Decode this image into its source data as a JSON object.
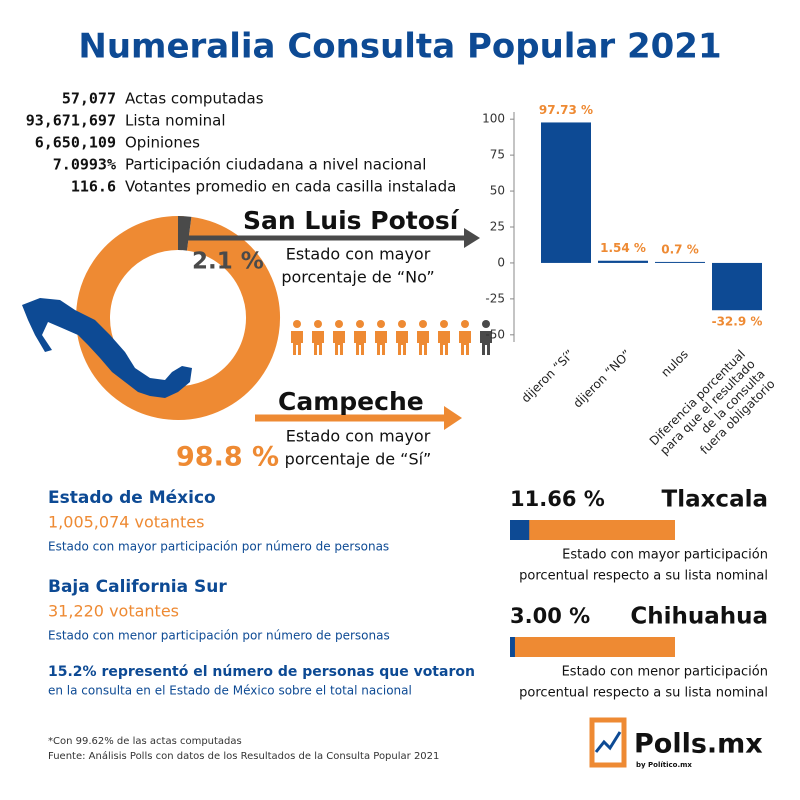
{
  "title": "Numeralia Consulta Popular 2021",
  "stats": [
    {
      "value": "57,077",
      "label": "Actas computadas"
    },
    {
      "value": "93,671,697",
      "label": "Lista nominal"
    },
    {
      "value": "6,650,109",
      "label": "Opiniones"
    },
    {
      "value": "7.0993%",
      "label": "Participación ciudadana a nivel nacional"
    },
    {
      "value": "116.6",
      "label": "Votantes promedio en cada casilla instalada"
    }
  ],
  "donut": {
    "values": [
      2.1,
      98.8
    ],
    "value_labels": [
      "2.1 %",
      "98.8 %"
    ],
    "states": [
      "San Luis Potosí",
      "Campeche"
    ],
    "captions": [
      [
        "Estado con mayor",
        "porcentaje de “No”"
      ],
      [
        "Estado con mayor",
        "porcentaje de “Sí”"
      ]
    ]
  },
  "chart_data": {
    "type": "bar",
    "categories": [
      [
        "dijeron “Sí”"
      ],
      [
        "dijeron “NO”"
      ],
      [
        "nulos"
      ],
      [
        "Diferencia porcentual",
        "para que el resultado",
        "de la consulta",
        "fuera obligatorio"
      ]
    ],
    "values": [
      97.73,
      1.54,
      0.7,
      -32.9
    ],
    "value_labels": [
      "97.73 %",
      "1.54 %",
      "0.7 %",
      "-32.9 %"
    ],
    "color": "#0d4a94",
    "label_color": "#ee8a33",
    "ylim": [
      -55,
      105
    ],
    "yticks": [
      -50,
      -25,
      0,
      25,
      50,
      75,
      100
    ]
  },
  "highlights": [
    {
      "state": "Estado de México",
      "amount": "1,005,074 votantes",
      "caption": "Estado con mayor participación por número de personas"
    },
    {
      "state": "Baja California Sur",
      "amount": "31,220 votantes",
      "caption": "Estado con menor participación por número de personas"
    }
  ],
  "note": [
    "15.2% representó el número de personas que votaron",
    "en la consulta en el Estado de México sobre el total nacional"
  ],
  "participation": [
    {
      "value": 11.66,
      "value_label": "11.66 %",
      "state": "Tlaxcala",
      "caption": [
        "Estado con mayor participación",
        "porcentual respecto a su lista nominal"
      ]
    },
    {
      "value": 3.0,
      "value_label": "3.00 %",
      "state": "Chihuahua",
      "caption": [
        "Estado con menor participación",
        "porcentual respecto a su lista nominal"
      ]
    }
  ],
  "footnotes": [
    "*Con 99.62% de las actas computadas",
    "Fuente: Análisis Polls con datos de los Resultados de la Consulta Popular 2021"
  ],
  "logo": {
    "name": "Polls.mx",
    "by": "by Político.mx"
  }
}
